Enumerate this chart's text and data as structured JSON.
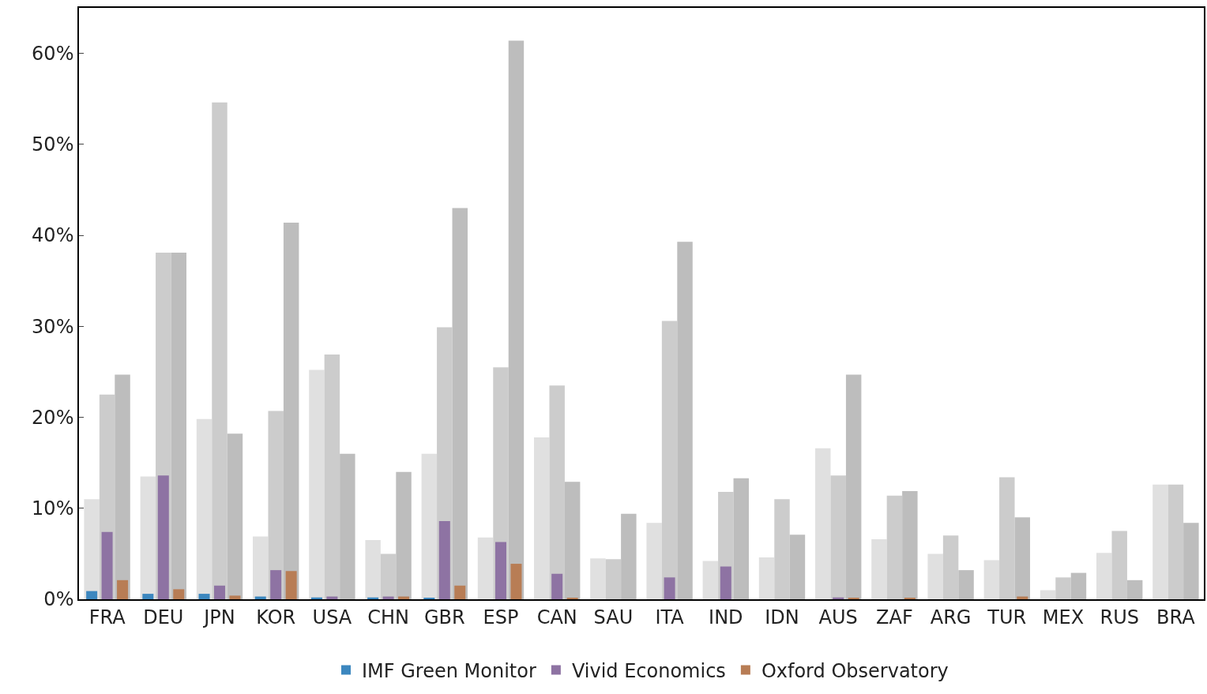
{
  "chart_data": {
    "type": "bar",
    "categories": [
      "FRA",
      "DEU",
      "JPN",
      "KOR",
      "USA",
      "CHN",
      "GBR",
      "ESP",
      "CAN",
      "SAU",
      "ITA",
      "IND",
      "IDN",
      "AUS",
      "ZAF",
      "ARG",
      "TUR",
      "MEX",
      "RUS",
      "BRA"
    ],
    "series": [
      {
        "color": "#e0e0e0",
        "values": [
          11.0,
          13.5,
          19.8,
          6.9,
          25.2,
          6.5,
          16.0,
          6.8,
          17.8,
          4.5,
          8.4,
          4.2,
          4.6,
          16.6,
          6.6,
          5.0,
          4.3,
          1.0,
          5.1,
          12.6
        ]
      },
      {
        "color": "#cccccc",
        "values": [
          22.5,
          38.1,
          54.6,
          20.7,
          26.9,
          5.0,
          29.9,
          25.5,
          23.5,
          4.4,
          30.6,
          11.8,
          11.0,
          13.6,
          11.4,
          7.0,
          13.4,
          2.4,
          7.5,
          12.6
        ]
      },
      {
        "color": "#bdbdbd",
        "values": [
          24.7,
          38.1,
          18.2,
          41.4,
          16.0,
          14.0,
          43.0,
          61.4,
          12.9,
          9.4,
          39.3,
          13.3,
          7.1,
          24.7,
          11.9,
          3.2,
          9.0,
          2.9,
          2.1,
          8.4
        ]
      },
      {
        "name": "IMF Green Monitor",
        "color": "#3c87bf",
        "values": [
          0.9,
          0.6,
          0.6,
          0.3,
          0.2,
          0.2,
          0.1,
          null,
          null,
          null,
          null,
          null,
          null,
          null,
          null,
          null,
          null,
          null,
          null,
          null
        ]
      },
      {
        "name": "Vivid Economics",
        "color": "#8e73a3",
        "values": [
          7.4,
          13.6,
          1.5,
          3.2,
          0.3,
          0.3,
          8.6,
          6.3,
          2.8,
          null,
          2.4,
          3.6,
          null,
          0.2,
          null,
          null,
          null,
          null,
          null,
          null
        ]
      },
      {
        "name": "Oxford Observatory",
        "color": "#b87d55",
        "values": [
          2.1,
          1.1,
          0.4,
          3.1,
          null,
          0.3,
          1.5,
          3.9,
          0.1,
          null,
          null,
          null,
          null,
          0.1,
          0.1,
          null,
          0.3,
          null,
          null,
          null
        ]
      }
    ],
    "ylim": [
      0,
      65
    ],
    "yticks": [
      {
        "value": 0,
        "label": "0%"
      },
      {
        "value": 10,
        "label": "10%"
      },
      {
        "value": 20,
        "label": "20%"
      },
      {
        "value": 30,
        "label": "30%"
      },
      {
        "value": 40,
        "label": "40%"
      },
      {
        "value": 50,
        "label": "50%"
      },
      {
        "value": 60,
        "label": "60%"
      }
    ],
    "legend": "bottom"
  }
}
